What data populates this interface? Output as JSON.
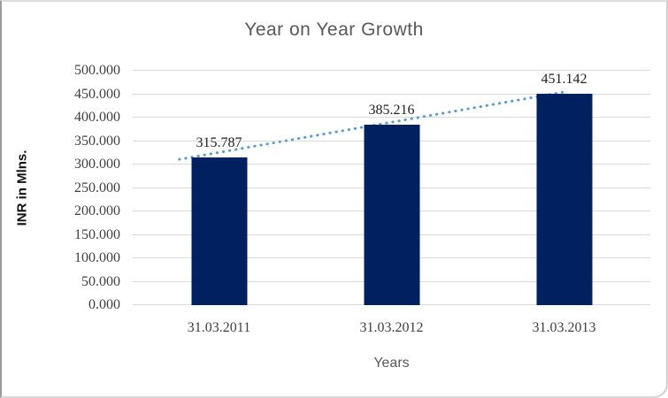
{
  "chart_data": {
    "type": "bar",
    "title": "Year on Year Growth",
    "xlabel": "Years",
    "ylabel": "INR in Mlns.",
    "categories": [
      "31.03.2011",
      "31.03.2012",
      "31.03.2013"
    ],
    "values": [
      315.787,
      385.216,
      451.142
    ],
    "data_labels": [
      "315.787",
      "385.216",
      "451.142"
    ],
    "ylim": [
      0,
      500
    ],
    "ytick_step": 50,
    "ytick_labels": [
      "0.000",
      "50.000",
      "100.000",
      "150.000",
      "200.000",
      "250.000",
      "300.000",
      "350.000",
      "400.000",
      "450.000",
      "500.000"
    ],
    "grid": true,
    "legend": "none",
    "bar_color": "#002060",
    "gridline_color": "#D9D9D9",
    "trendline": {
      "type": "linear",
      "style": "dotted",
      "color": "#5B9BD5",
      "x_start_frac": 0.09,
      "x_end_frac": 0.835,
      "start_value": 311,
      "end_value": 455
    }
  }
}
